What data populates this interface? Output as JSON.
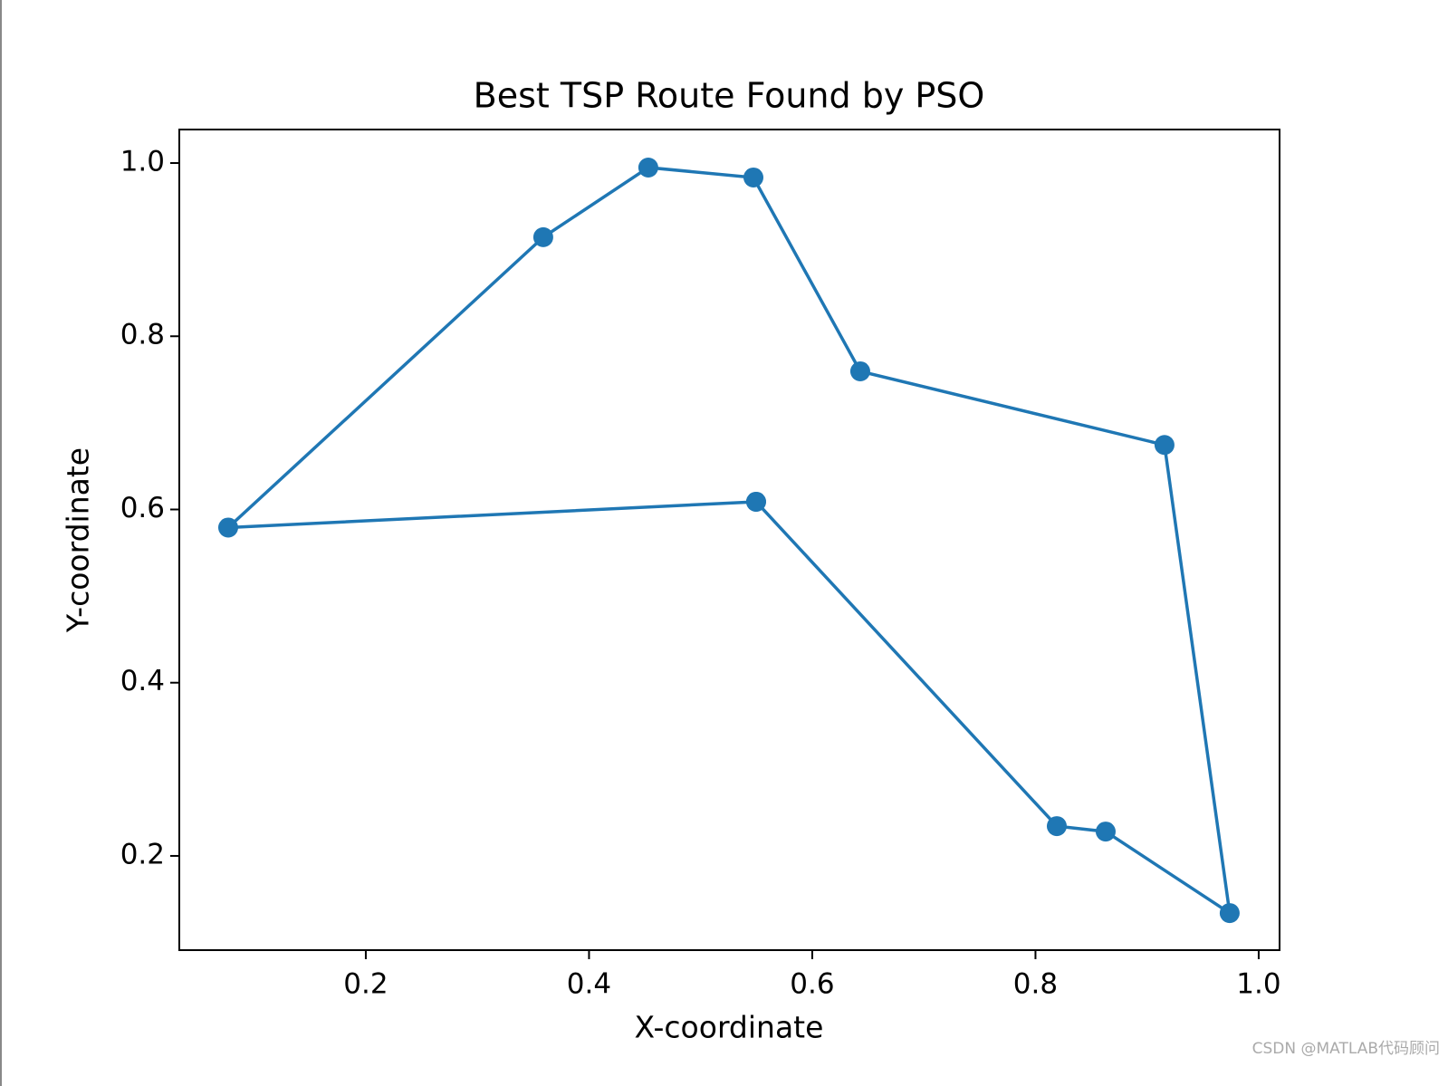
{
  "chart_data": {
    "type": "line",
    "title": "Best TSP Route Found by PSO",
    "x_label": "X-coordinate",
    "y_label": "Y-coordinate",
    "x": [
      0.5497,
      0.0767,
      0.359,
      0.4531,
      0.5473,
      0.643,
      0.9156,
      0.974,
      0.8629,
      0.8191,
      0.5497
    ],
    "values": [
      0.6089,
      0.5791,
      0.9144,
      0.9948,
      0.9833,
      0.7595,
      0.6745,
      0.134,
      0.2281,
      0.2344,
      0.6089
    ],
    "color": "#1f77b4",
    "markers": true,
    "xlim": [
      0.0329,
      1.0187
    ],
    "ylim": [
      0.0912,
      1.0387
    ],
    "xticks": [
      0.2,
      0.4,
      0.6,
      0.8,
      {
        "value": 1,
        "label": "1.0"
      }
    ],
    "yticks": [
      0.2,
      0.4,
      0.6,
      0.8,
      {
        "value": 1,
        "label": "1.0"
      }
    ],
    "grid": false,
    "watermark": "CSDN @MATLAB代码顾问"
  }
}
